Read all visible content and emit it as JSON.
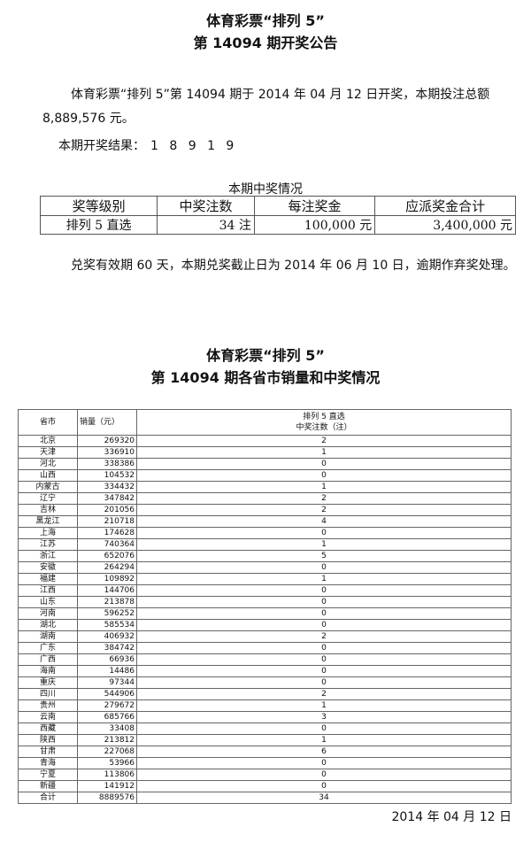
{
  "header": {
    "title1": "体育彩票“排列 5”",
    "title2": "第 14094 期开奖公告"
  },
  "announcement": {
    "text": "体育彩票“排列 5”第 14094 期于 2014 年 04 月 12 日开奖，本期投注总额 8,889,576 元。",
    "result_label": "本期开奖结果：",
    "result_numbers": "1 8 9 1 9"
  },
  "prize_table": {
    "caption": "本期中奖情况",
    "headers": [
      "奖等级别",
      "中奖注数",
      "每注奖金",
      "应派奖金合计"
    ],
    "rows": [
      [
        "排列 5 直选",
        "34 注",
        "100,000 元",
        "3,400,000 元"
      ]
    ]
  },
  "notice": "兑奖有效期 60 天，本期兑奖截止日为 2014 年 06 月 10 日，逾期作弃奖处理。",
  "sales_section": {
    "title1": "体育彩票“排列 5”",
    "title2": "第 14094 期各省市销量和中奖情况",
    "headers": [
      "省市",
      "销量（元）",
      "排列 5 直选",
      "中奖注数（注）"
    ],
    "rows": [
      [
        "北京",
        "269320",
        "2"
      ],
      [
        "天津",
        "336910",
        "1"
      ],
      [
        "河北",
        "338386",
        "0"
      ],
      [
        "山西",
        "104532",
        "0"
      ],
      [
        "内蒙古",
        "334432",
        "1"
      ],
      [
        "辽宁",
        "347842",
        "2"
      ],
      [
        "吉林",
        "201056",
        "2"
      ],
      [
        "黑龙江",
        "210718",
        "4"
      ],
      [
        "上海",
        "174628",
        "0"
      ],
      [
        "江苏",
        "740364",
        "1"
      ],
      [
        "浙江",
        "652076",
        "5"
      ],
      [
        "安徽",
        "264294",
        "0"
      ],
      [
        "福建",
        "109892",
        "1"
      ],
      [
        "江西",
        "144706",
        "0"
      ],
      [
        "山东",
        "213878",
        "0"
      ],
      [
        "河南",
        "596252",
        "0"
      ],
      [
        "湖北",
        "585534",
        "0"
      ],
      [
        "湖南",
        "406932",
        "2"
      ],
      [
        "广东",
        "384742",
        "0"
      ],
      [
        "广西",
        "66936",
        "0"
      ],
      [
        "海南",
        "14486",
        "0"
      ],
      [
        "重庆",
        "97344",
        "0"
      ],
      [
        "四川",
        "544906",
        "2"
      ],
      [
        "贵州",
        "279672",
        "1"
      ],
      [
        "云南",
        "685766",
        "3"
      ],
      [
        "西藏",
        "33408",
        "0"
      ],
      [
        "陕西",
        "213812",
        "1"
      ],
      [
        "甘肃",
        "227068",
        "6"
      ],
      [
        "青海",
        "53966",
        "0"
      ],
      [
        "宁夏",
        "113806",
        "0"
      ],
      [
        "新疆",
        "141912",
        "0"
      ],
      [
        "合计",
        "8889576",
        "34"
      ]
    ]
  },
  "date": "2014 年 04 月 12 日"
}
